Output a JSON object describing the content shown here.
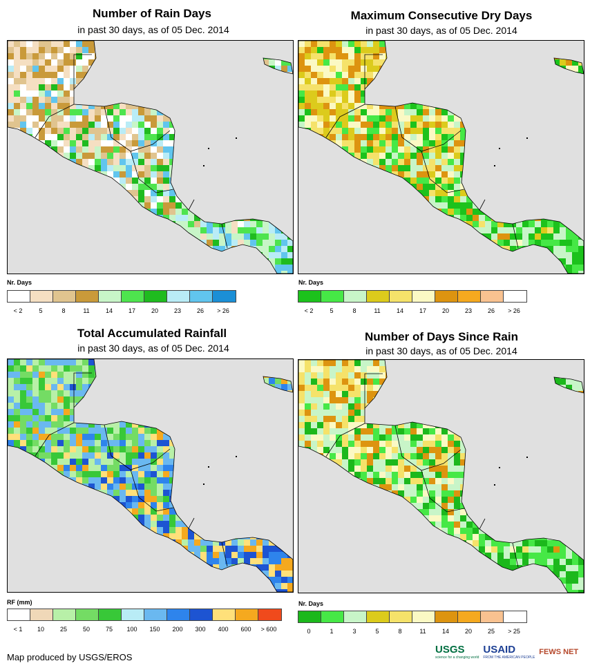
{
  "panels": [
    {
      "title": "Number of Rain Days",
      "subtitle": "in past 30 days, as of 05 Dec. 2014",
      "legend": {
        "unit": "Nr. Days",
        "colors": [
          "#ffffff",
          "#f5dfc2",
          "#e0c48f",
          "#c99a3a",
          "#c8f5c8",
          "#4ee44e",
          "#1fbb1f",
          "#b9ecf6",
          "#61c5ee",
          "#1b8fd6"
        ],
        "ticks": [
          "< 2",
          "5",
          "8",
          "11",
          "14",
          "17",
          "20",
          "23",
          "26",
          "> 26"
        ]
      },
      "dominant_pattern": [
        "#f5dfc2",
        "#e0c48f",
        "#c99a3a",
        "#ffffff"
      ],
      "wet_pattern": [
        "#c8f5c8",
        "#4ee44e",
        "#1fbb1f",
        "#b9ecf6",
        "#61c5ee"
      ]
    },
    {
      "title": "Maximum Consecutive Dry Days",
      "subtitle": "in past 30 days, as of 05 Dec. 2014",
      "legend": {
        "unit": "Nr. Days",
        "colors": [
          "#1cc21c",
          "#46e846",
          "#c8f5c8",
          "#dccb1c",
          "#f5e26a",
          "#fbf9c4",
          "#dd9410",
          "#f5a91f",
          "#f9c290",
          "#ffffff"
        ],
        "ticks": [
          "< 2",
          "5",
          "8",
          "11",
          "14",
          "17",
          "20",
          "23",
          "26",
          "> 26"
        ]
      },
      "dominant_pattern": [
        "#dccb1c",
        "#f5e26a",
        "#fbf9c4",
        "#dd9410"
      ],
      "wet_pattern": [
        "#c8f5c8",
        "#46e846",
        "#1cc21c"
      ]
    },
    {
      "title": "Total Accumulated Rainfall",
      "subtitle": "in past 30 days, as of 05 Dec. 2014",
      "legend": {
        "unit": "RF (mm)",
        "colors": [
          "#ffffff",
          "#f0d8b8",
          "#b8f0a8",
          "#74dc64",
          "#38c838",
          "#b9ecf6",
          "#6ab8f0",
          "#2e84ec",
          "#1d54d2",
          "#ffe07a",
          "#f5a91f",
          "#f04a1c"
        ],
        "ticks": [
          "< 1",
          "10",
          "25",
          "50",
          "75",
          "100",
          "150",
          "200",
          "300",
          "400",
          "600",
          "> 600"
        ]
      },
      "dominant_pattern": [
        "#74dc64",
        "#38c838",
        "#b8f0a8",
        "#6ab8f0"
      ],
      "wet_pattern": [
        "#2e84ec",
        "#1d54d2",
        "#6ab8f0",
        "#ffe07a",
        "#f5a91f"
      ]
    },
    {
      "title": "Number of Days Since Rain",
      "subtitle": "in past 30 days, as of 05 Dec. 2014",
      "legend": {
        "unit": "Nr. Days",
        "colors": [
          "#1cb81c",
          "#46e846",
          "#c8f5c8",
          "#dccb1c",
          "#f5e26a",
          "#fbf9c4",
          "#dd9410",
          "#f5a91f",
          "#f9c290",
          "#ffffff"
        ],
        "ticks": [
          "0",
          "1",
          "3",
          "5",
          "8",
          "11",
          "14",
          "20",
          "25",
          "> 25"
        ]
      },
      "dominant_pattern": [
        "#fbf9c4",
        "#f5e26a",
        "#c8f5c8",
        "#dd9410"
      ],
      "wet_pattern": [
        "#1cb81c",
        "#46e846",
        "#c8f5c8"
      ]
    }
  ],
  "credit": "Map produced by USGS/EROS",
  "logos": {
    "usgs": "USGS",
    "usgs_tagline": "science for a changing world",
    "usaid": "USAID",
    "usaid_tagline": "FROM THE AMERICAN PEOPLE",
    "fewsnet": "FEWS NET"
  }
}
